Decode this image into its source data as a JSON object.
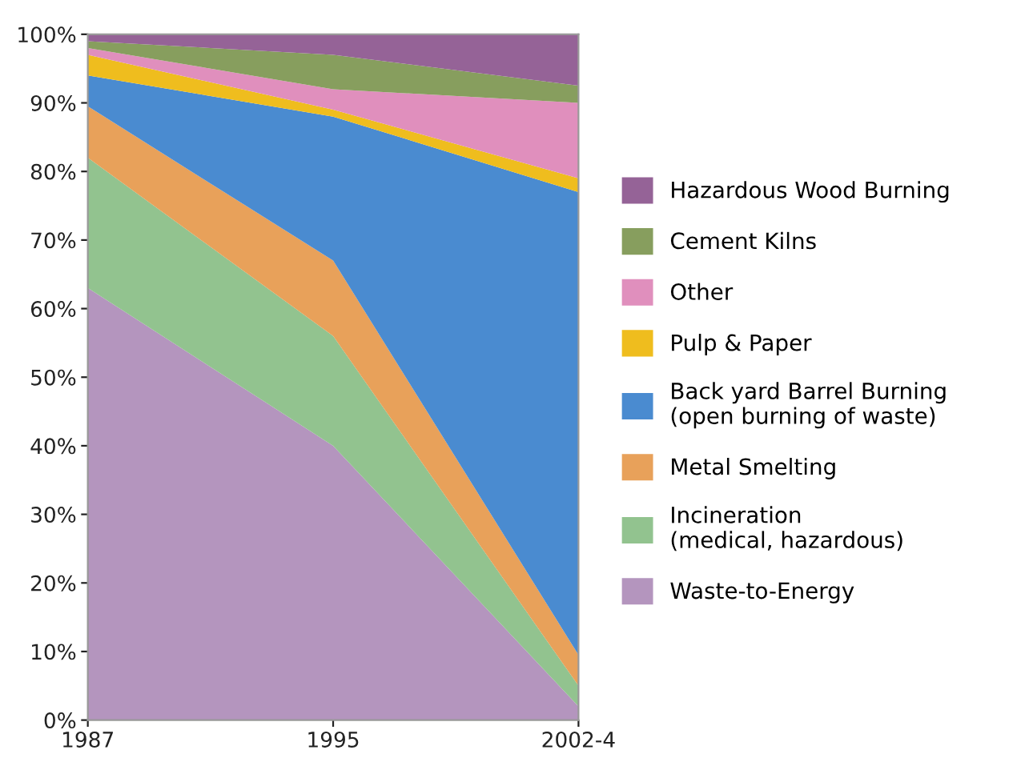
{
  "chart_data": {
    "type": "area",
    "stacked": true,
    "categories": [
      "1987",
      "1995",
      "2002-4"
    ],
    "series": [
      {
        "name": "Waste-to-Energy",
        "color": "#b495be",
        "values": [
          63,
          40,
          2
        ]
      },
      {
        "name": "Incineration\n(medical, hazardous)",
        "color": "#92c38f",
        "values": [
          19,
          16,
          3
        ]
      },
      {
        "name": "Metal Smelting",
        "color": "#e8a15a",
        "values": [
          7.5,
          11,
          4.5
        ]
      },
      {
        "name": "Back yard Barrel Burning\n(open burning of waste)",
        "color": "#4a8bd0",
        "values": [
          4.5,
          21,
          67.5
        ]
      },
      {
        "name": "Pulp & Paper",
        "color": "#efbd1e",
        "values": [
          3,
          1,
          2
        ]
      },
      {
        "name": "Other",
        "color": "#e08fbd",
        "values": [
          1,
          3,
          11
        ]
      },
      {
        "name": "Cement Kilns",
        "color": "#879e5e",
        "values": [
          1,
          5,
          2.5
        ]
      },
      {
        "name": "Hazardous Wood Burning",
        "color": "#956397",
        "values": [
          1,
          3,
          7.5
        ]
      }
    ],
    "ylim": [
      0,
      100
    ],
    "yticks": [
      {
        "value": 0,
        "label": "0%"
      },
      {
        "value": 10,
        "label": "10%"
      },
      {
        "value": 20,
        "label": "20%"
      },
      {
        "value": 30,
        "label": "30%"
      },
      {
        "value": 40,
        "label": "40%"
      },
      {
        "value": 50,
        "label": "50%"
      },
      {
        "value": 60,
        "label": "60%"
      },
      {
        "value": 70,
        "label": "70%"
      },
      {
        "value": 80,
        "label": "80%"
      },
      {
        "value": 90,
        "label": "90%"
      },
      {
        "value": 100,
        "label": "100%"
      }
    ],
    "legend": "right",
    "grid": false
  }
}
